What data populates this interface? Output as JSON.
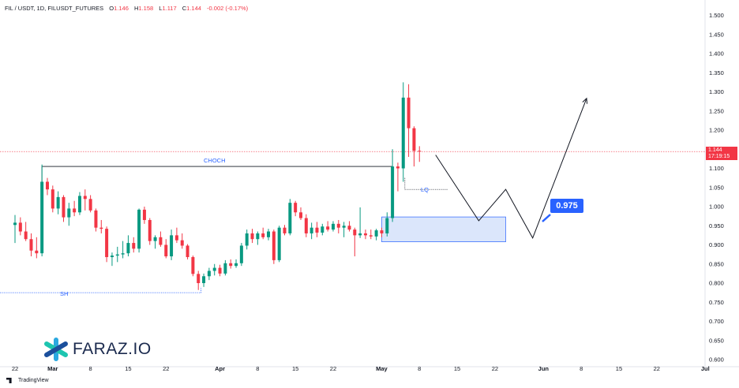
{
  "header": {
    "symbol": "FIL / USDT, 1D, FILUSDT_FUTURES",
    "open_label": "O",
    "open": "1.146",
    "high_label": "H",
    "high": "1.158",
    "low_label": "L",
    "low": "1.117",
    "close_label": "C",
    "close": "1.144",
    "change": "-0.002 (-0.17%)"
  },
  "price_tag": {
    "price": "1.144",
    "countdown": "17:19:15"
  },
  "annotations": {
    "choch": "CHOCH",
    "lq": "LQ",
    "sh": "SH",
    "target": "0.975"
  },
  "logo": {
    "text": "FARAZ.IO",
    "icon": "asterisk-logo-icon"
  },
  "footer": {
    "brand": "TradingView",
    "icon": "tradingview-icon"
  },
  "colors": {
    "up": "#089981",
    "down": "#f23645",
    "accent": "#2962ff",
    "zone": "#dbe6fb"
  },
  "chart_data": {
    "type": "candlestick",
    "y_ticks": [
      "1.500",
      "1.450",
      "1.400",
      "1.350",
      "1.300",
      "1.250",
      "1.200",
      "1.150",
      "1.100",
      "1.050",
      "1.000",
      "0.950",
      "0.900",
      "0.850",
      "0.800",
      "0.750",
      "0.700",
      "0.650",
      "0.600"
    ],
    "ylim": [
      0.6,
      1.5
    ],
    "x_ticks": [
      {
        "label": "22",
        "day": 0
      },
      {
        "label": "Mar",
        "day": 7,
        "bold": true
      },
      {
        "label": "8",
        "day": 14
      },
      {
        "label": "15",
        "day": 21
      },
      {
        "label": "22",
        "day": 28
      },
      {
        "label": "Apr",
        "day": 38,
        "bold": true
      },
      {
        "label": "8",
        "day": 45
      },
      {
        "label": "15",
        "day": 52
      },
      {
        "label": "22",
        "day": 59
      },
      {
        "label": "May",
        "day": 68,
        "bold": true
      },
      {
        "label": "8",
        "day": 75
      },
      {
        "label": "15",
        "day": 82
      },
      {
        "label": "22",
        "day": 89
      },
      {
        "label": "Jun",
        "day": 98,
        "bold": true
      },
      {
        "label": "8",
        "day": 105
      },
      {
        "label": "15",
        "day": 112
      },
      {
        "label": "22",
        "day": 119
      },
      {
        "label": "Jul",
        "day": 128,
        "bold": true
      }
    ],
    "candles": [
      [
        0.952,
        0.978,
        0.905,
        0.958
      ],
      [
        0.958,
        0.972,
        0.925,
        0.935
      ],
      [
        0.935,
        0.96,
        0.91,
        0.915
      ],
      [
        0.915,
        0.93,
        0.87,
        0.885
      ],
      [
        0.885,
        0.92,
        0.865,
        0.878
      ],
      [
        0.878,
        1.11,
        0.87,
        1.065
      ],
      [
        1.065,
        1.075,
        1.03,
        1.045
      ],
      [
        1.045,
        1.055,
        0.985,
        0.995
      ],
      [
        0.995,
        1.04,
        0.98,
        1.025
      ],
      [
        1.025,
        1.03,
        0.96,
        0.972
      ],
      [
        0.972,
        1.01,
        0.95,
        0.995
      ],
      [
        0.995,
        1.015,
        0.975,
        0.985
      ],
      [
        0.985,
        1.038,
        0.978,
        1.028
      ],
      [
        1.028,
        1.045,
        0.99,
        1.02
      ],
      [
        1.02,
        1.03,
        0.985,
        0.99
      ],
      [
        0.99,
        0.995,
        0.935,
        0.945
      ],
      [
        0.945,
        0.965,
        0.93,
        0.942
      ],
      [
        0.942,
        0.948,
        0.855,
        0.868
      ],
      [
        0.868,
        0.88,
        0.845,
        0.872
      ],
      [
        0.872,
        0.895,
        0.855,
        0.875
      ],
      [
        0.875,
        0.91,
        0.865,
        0.878
      ],
      [
        0.878,
        0.925,
        0.87,
        0.905
      ],
      [
        0.905,
        0.92,
        0.88,
        0.89
      ],
      [
        0.89,
        0.995,
        0.88,
        0.992
      ],
      [
        0.992,
        1.0,
        0.955,
        0.965
      ],
      [
        0.965,
        0.97,
        0.9,
        0.91
      ],
      [
        0.91,
        0.925,
        0.89,
        0.92
      ],
      [
        0.92,
        0.935,
        0.895,
        0.9
      ],
      [
        0.9,
        0.915,
        0.865,
        0.87
      ],
      [
        0.87,
        0.94,
        0.86,
        0.925
      ],
      [
        0.925,
        0.945,
        0.905,
        0.912
      ],
      [
        0.912,
        0.93,
        0.89,
        0.898
      ],
      [
        0.898,
        0.902,
        0.862,
        0.868
      ],
      [
        0.868,
        0.872,
        0.818,
        0.824
      ],
      [
        0.824,
        0.832,
        0.782,
        0.8
      ],
      [
        0.8,
        0.825,
        0.79,
        0.818
      ],
      [
        0.818,
        0.84,
        0.808,
        0.832
      ],
      [
        0.832,
        0.85,
        0.82,
        0.84
      ],
      [
        0.84,
        0.848,
        0.818,
        0.825
      ],
      [
        0.825,
        0.86,
        0.82,
        0.852
      ],
      [
        0.852,
        0.862,
        0.838,
        0.845
      ],
      [
        0.845,
        0.862,
        0.84,
        0.852
      ],
      [
        0.852,
        0.905,
        0.845,
        0.898
      ],
      [
        0.898,
        0.94,
        0.888,
        0.93
      ],
      [
        0.93,
        0.942,
        0.905,
        0.915
      ],
      [
        0.915,
        0.935,
        0.9,
        0.93
      ],
      [
        0.93,
        0.945,
        0.915,
        0.92
      ],
      [
        0.92,
        0.942,
        0.912,
        0.935
      ],
      [
        0.935,
        0.94,
        0.85,
        0.86
      ],
      [
        0.86,
        0.95,
        0.855,
        0.945
      ],
      [
        0.945,
        0.952,
        0.925,
        0.93
      ],
      [
        0.93,
        1.02,
        0.925,
        1.01
      ],
      [
        1.01,
        1.015,
        0.975,
        0.985
      ],
      [
        0.985,
        0.998,
        0.965,
        0.97
      ],
      [
        0.97,
        0.98,
        0.92,
        0.93
      ],
      [
        0.93,
        0.958,
        0.915,
        0.945
      ],
      [
        0.945,
        0.96,
        0.92,
        0.932
      ],
      [
        0.932,
        0.955,
        0.925,
        0.948
      ],
      [
        0.948,
        0.962,
        0.935,
        0.94
      ],
      [
        0.94,
        0.962,
        0.935,
        0.955
      ],
      [
        0.955,
        0.965,
        0.93,
        0.945
      ],
      [
        0.945,
        0.96,
        0.92,
        0.95
      ],
      [
        0.95,
        0.962,
        0.935,
        0.94
      ],
      [
        0.94,
        0.945,
        0.87,
        0.925
      ],
      [
        0.925,
        0.998,
        0.918,
        0.93
      ],
      [
        0.93,
        0.94,
        0.915,
        0.925
      ],
      [
        0.925,
        0.94,
        0.915,
        0.922
      ],
      [
        0.922,
        0.942,
        0.912,
        0.938
      ],
      [
        0.938,
        0.945,
        0.92,
        0.93
      ],
      [
        0.93,
        0.985,
        0.922,
        0.97
      ],
      [
        0.97,
        1.15,
        0.96,
        1.105
      ],
      [
        1.105,
        1.115,
        1.04,
        1.1
      ],
      [
        1.1,
        1.325,
        1.065,
        1.285
      ],
      [
        1.285,
        1.32,
        1.13,
        1.205
      ],
      [
        1.205,
        1.21,
        1.105,
        1.146
      ],
      [
        1.146,
        1.158,
        1.117,
        1.144
      ]
    ],
    "choch_level": 1.105,
    "sh_level": 0.775,
    "lq_level": 1.045,
    "zone": {
      "from_day": 68,
      "to_day": 91,
      "low": 0.908,
      "high": 0.973
    },
    "projection": [
      [
        78,
        1.135
      ],
      [
        86,
        0.963
      ],
      [
        91,
        1.045
      ],
      [
        96,
        0.918
      ],
      [
        106,
        1.283
      ]
    ],
    "current_price": 1.144
  }
}
